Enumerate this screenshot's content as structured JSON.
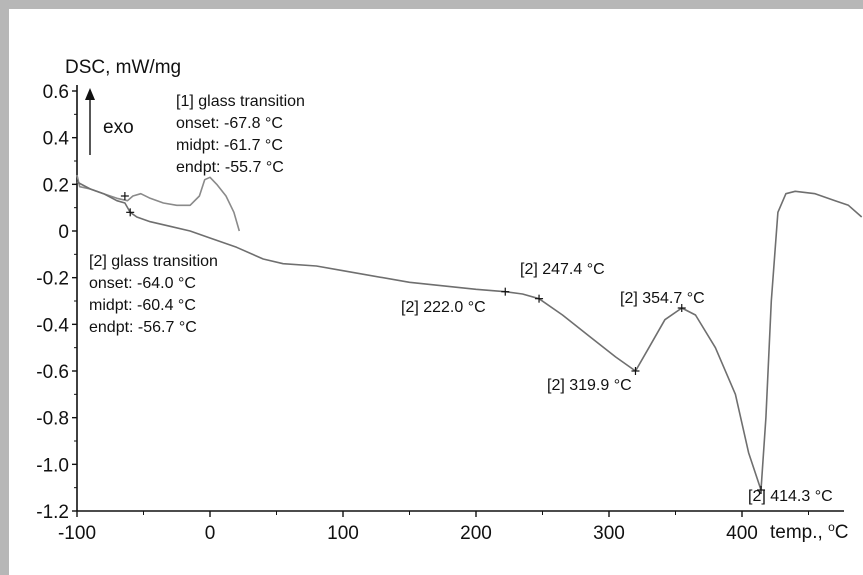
{
  "chart_data": {
    "type": "line",
    "ylabel": "DSC, mW/mg",
    "xlabel": "temp., ",
    "xlabel_unit": "°C",
    "exo_label": "exo",
    "xlim": [
      -100,
      430
    ],
    "ylim": [
      -1.2,
      0.6
    ],
    "x_ticks": [
      -100,
      0,
      100,
      200,
      300,
      400
    ],
    "x_tick_labels": [
      "-100",
      "0",
      "100",
      "200",
      "300",
      "400"
    ],
    "y_ticks": [
      0.6,
      0.4,
      0.2,
      0,
      -0.2,
      -0.4,
      -0.6,
      -0.8,
      -1.0,
      -1.2
    ],
    "y_tick_labels": [
      "0.6",
      "0.4",
      "0.2",
      "0",
      "-0.2",
      "-0.4",
      "-0.6",
      "-0.8",
      "-1.0",
      "-1.2"
    ],
    "grid": false,
    "series": [
      {
        "values": [
          [
            -100,
            0.24
          ],
          [
            -98,
            0.19
          ],
          [
            -90,
            0.18
          ],
          [
            -80,
            0.16
          ],
          [
            -70,
            0.14
          ],
          [
            -62,
            0.13
          ],
          [
            -58,
            0.15
          ],
          [
            -52,
            0.16
          ],
          [
            -45,
            0.14
          ],
          [
            -35,
            0.12
          ],
          [
            -25,
            0.11
          ],
          [
            -15,
            0.11
          ],
          [
            -8,
            0.15
          ],
          [
            -4,
            0.22
          ],
          [
            0,
            0.23
          ],
          [
            5,
            0.2
          ],
          [
            12,
            0.15
          ],
          [
            18,
            0.08
          ],
          [
            22,
            0.0
          ]
        ]
      },
      {
        "values": [
          [
            -100,
            0.21
          ],
          [
            -90,
            0.18
          ],
          [
            -80,
            0.16
          ],
          [
            -70,
            0.13
          ],
          [
            -64,
            0.12
          ],
          [
            -60,
            0.08
          ],
          [
            -55,
            0.06
          ],
          [
            -45,
            0.04
          ],
          [
            -30,
            0.02
          ],
          [
            -15,
            0.0
          ],
          [
            0,
            -0.03
          ],
          [
            20,
            -0.07
          ],
          [
            40,
            -0.12
          ],
          [
            55,
            -0.14
          ],
          [
            80,
            -0.15
          ],
          [
            100,
            -0.17
          ],
          [
            150,
            -0.22
          ],
          [
            200,
            -0.25
          ],
          [
            222.0,
            -0.26
          ],
          [
            235,
            -0.27
          ],
          [
            247.4,
            -0.29
          ],
          [
            265,
            -0.36
          ],
          [
            285,
            -0.45
          ],
          [
            305,
            -0.54
          ],
          [
            319.9,
            -0.6
          ],
          [
            330,
            -0.5
          ],
          [
            342,
            -0.38
          ],
          [
            354.7,
            -0.33
          ],
          [
            365,
            -0.36
          ],
          [
            380,
            -0.5
          ],
          [
            395,
            -0.7
          ],
          [
            405,
            -0.95
          ],
          [
            414.3,
            -1.11
          ],
          [
            418,
            -0.8
          ],
          [
            422,
            -0.3
          ],
          [
            427,
            0.08
          ],
          [
            433,
            0.16
          ],
          [
            440,
            0.17
          ],
          [
            455,
            0.16
          ],
          [
            470,
            0.13
          ],
          [
            480,
            0.11
          ],
          [
            490,
            0.06
          ]
        ]
      }
    ],
    "markers": [
      {
        "x": -64,
        "y": 0.15
      },
      {
        "x": -60,
        "y": 0.08
      },
      {
        "x": 222.0,
        "y": -0.26
      },
      {
        "x": 247.4,
        "y": -0.29
      },
      {
        "x": 319.9,
        "y": -0.6
      },
      {
        "x": 354.7,
        "y": -0.33
      },
      {
        "x": 414.3,
        "y": -1.11
      }
    ],
    "annotations": {
      "gt1": [
        "[1] glass transition",
        "onset: -67.8 °C",
        "midpt: -61.7 °C",
        "endpt: -55.7 °C"
      ],
      "gt2": [
        "[2] glass transition",
        "onset: -64.0 °C",
        "midpt: -60.4 °C",
        "endpt: -56.7 °C"
      ],
      "p222": "[2] 222.0 °C",
      "p247": "[2] 247.4 °C",
      "p319": "[2] 319.9 °C",
      "p354": "[2] 354.7 °C",
      "p414": "[2] 414.3 °C"
    }
  }
}
